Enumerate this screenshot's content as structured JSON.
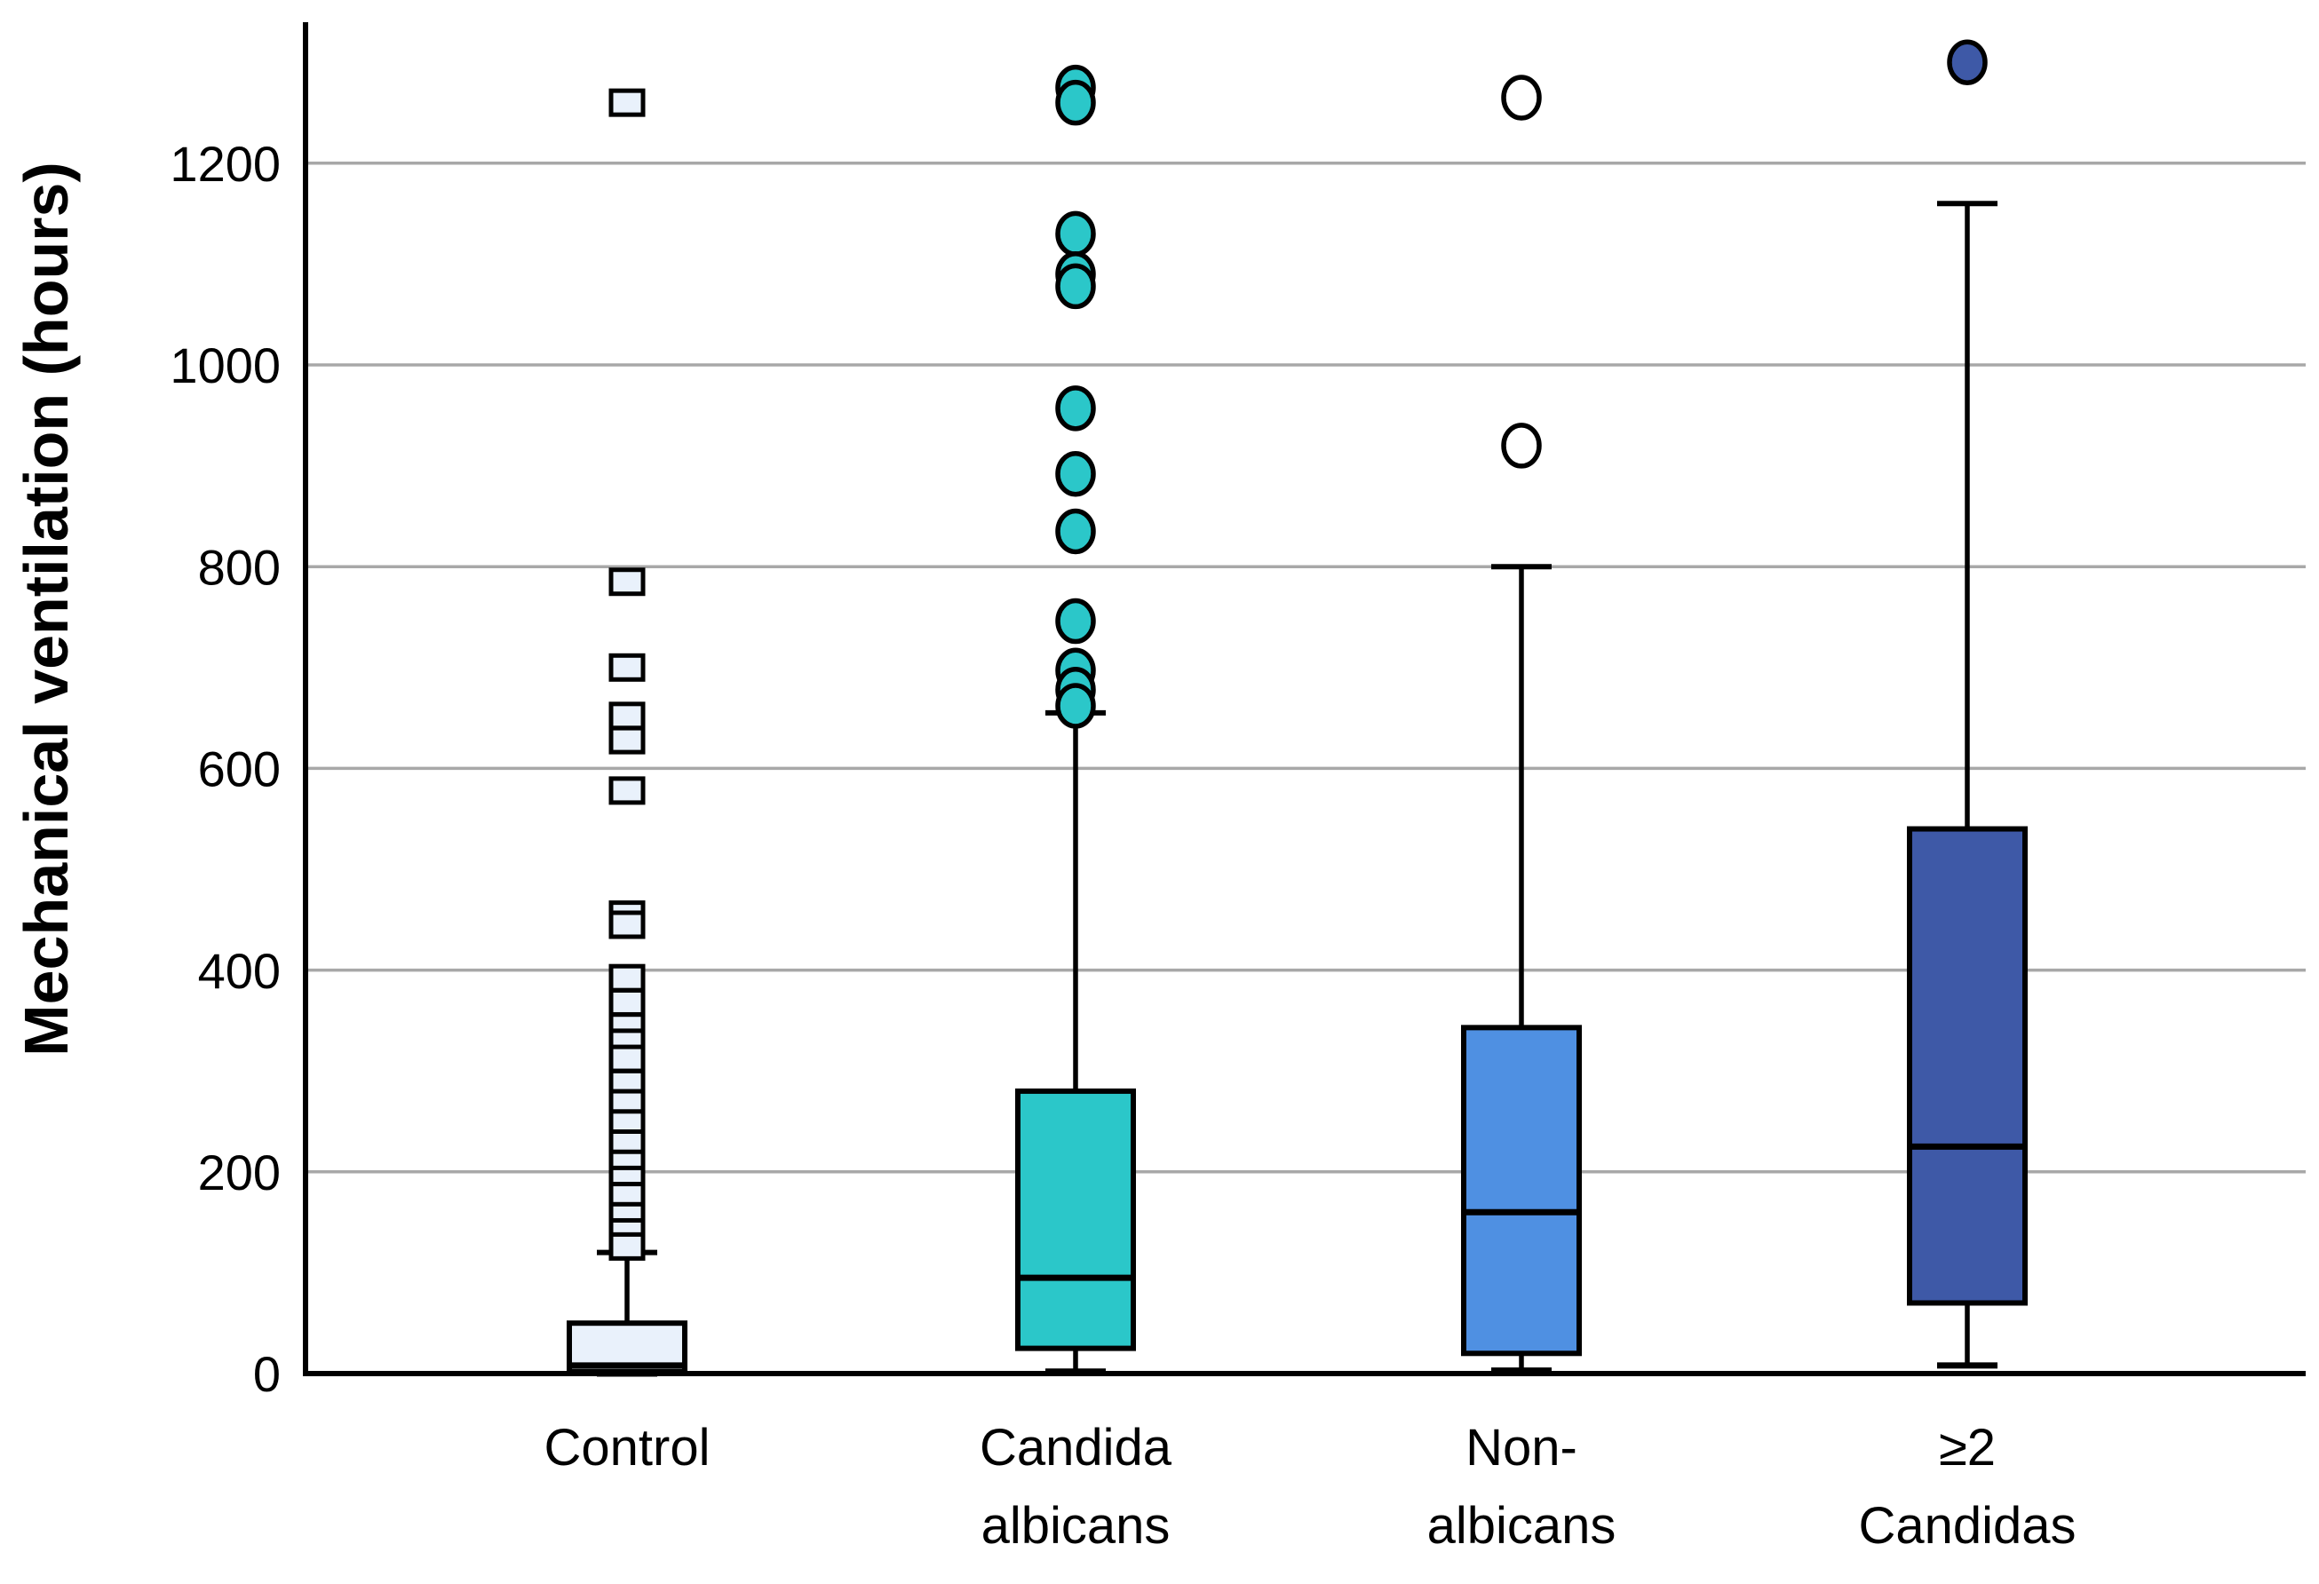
{
  "chart_data": {
    "type": "boxplot",
    "title": "",
    "xlabel": "",
    "ylabel": "Mechanical ventilation (hours)",
    "ylim": [
      0,
      1345
    ],
    "yticks": [
      0,
      200,
      400,
      600,
      800,
      1000,
      1200
    ],
    "grid": "horizontal-only",
    "legend": "none",
    "grid_color": "#A8A8A8",
    "axis_color": "#000000",
    "background_color": "#FFFFFF",
    "groups": [
      {
        "name": "control",
        "label_lines": [
          "Control"
        ],
        "box_color": "#E9F1FB",
        "marker": "square",
        "marker_fill": "#E9F1FB",
        "whisker_low": 0,
        "q1": 2,
        "median": 8,
        "q3": 50,
        "whisker_high": 120,
        "outliers": [
          1260,
          785,
          700,
          652,
          628,
          578,
          455,
          445,
          392,
          368,
          344,
          328,
          312,
          288,
          268,
          248,
          228,
          208,
          192,
          176,
          156,
          140,
          126
        ]
      },
      {
        "name": "candida-albicans",
        "label_lines": [
          "Candida",
          "albicans"
        ],
        "box_color": "#2BC7C9",
        "marker": "circle",
        "marker_fill": "#2BC7C9",
        "whisker_low": 2,
        "q1": 25,
        "median": 95,
        "q3": 280,
        "whisker_high": 655,
        "outliers": [
          1275,
          1260,
          1130,
          1090,
          1078,
          957,
          892,
          835,
          746,
          697,
          678,
          662
        ]
      },
      {
        "name": "non-albicans",
        "label_lines": [
          "Non-",
          "albicans"
        ],
        "box_color": "#4F90E2",
        "marker": "circle",
        "marker_fill": "#FFFFFF",
        "whisker_low": 3,
        "q1": 20,
        "median": 160,
        "q3": 343,
        "whisker_high": 800,
        "outliers": [
          1265,
          920
        ]
      },
      {
        "name": "ge2-candidas",
        "label_lines": [
          "≥2",
          "Candidas"
        ],
        "box_color": "#3E59A7",
        "marker": "circle",
        "marker_fill": "#3E59A7",
        "whisker_low": 8,
        "q1": 70,
        "median": 225,
        "q3": 540,
        "whisker_high": 1160,
        "outliers": [
          1300
        ]
      }
    ]
  }
}
